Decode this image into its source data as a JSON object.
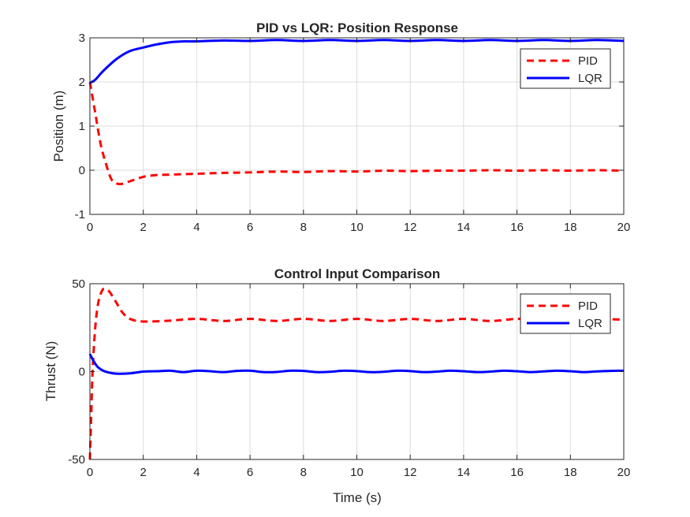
{
  "colors": {
    "pid": "#ff0000",
    "lqr": "#0000ff",
    "grid": "#dcdcdc",
    "axis": "#262626"
  },
  "chart_data": [
    {
      "type": "line",
      "title": "PID vs LQR: Position Response",
      "xlabel": "",
      "ylabel": "Position (m)",
      "xlim": [
        0,
        20
      ],
      "ylim": [
        -1,
        3
      ],
      "xticks": [
        0,
        2,
        4,
        6,
        8,
        10,
        12,
        14,
        16,
        18,
        20
      ],
      "yticks": [
        -1,
        0,
        1,
        2,
        3
      ],
      "grid": true,
      "legend_position": "top-right",
      "series": [
        {
          "name": "PID",
          "style": "dashed",
          "color": "#ff0000",
          "x": [
            0,
            0.2,
            0.4,
            0.6,
            0.8,
            1.0,
            1.2,
            1.5,
            2.0,
            2.5,
            3,
            4,
            5,
            6,
            7,
            8,
            9,
            10,
            11,
            12,
            13,
            14,
            15,
            16,
            17,
            18,
            19,
            20
          ],
          "y": [
            2.0,
            1.3,
            0.6,
            0.15,
            -0.2,
            -0.3,
            -0.31,
            -0.25,
            -0.15,
            -0.11,
            -0.1,
            -0.08,
            -0.06,
            -0.05,
            -0.03,
            -0.04,
            -0.02,
            -0.03,
            -0.01,
            -0.02,
            -0.01,
            -0.01,
            0.0,
            -0.01,
            0.0,
            -0.01,
            0.0,
            -0.01
          ]
        },
        {
          "name": "LQR",
          "style": "solid",
          "color": "#0000ff",
          "x": [
            0,
            0.2,
            0.5,
            1.0,
            1.5,
            2.0,
            2.5,
            3,
            3.5,
            4,
            5,
            6,
            7,
            8,
            9,
            10,
            11,
            12,
            13,
            14,
            15,
            16,
            17,
            18,
            19,
            20
          ],
          "y": [
            1.98,
            2.05,
            2.25,
            2.52,
            2.7,
            2.78,
            2.85,
            2.9,
            2.92,
            2.92,
            2.94,
            2.93,
            2.95,
            2.93,
            2.95,
            2.93,
            2.95,
            2.93,
            2.95,
            2.93,
            2.95,
            2.93,
            2.95,
            2.93,
            2.95,
            2.93
          ]
        }
      ]
    },
    {
      "type": "line",
      "title": "Control Input Comparison",
      "xlabel": "Time (s)",
      "ylabel": "Thrust (N)",
      "xlim": [
        0,
        20
      ],
      "ylim": [
        -50,
        50
      ],
      "xticks": [
        0,
        2,
        4,
        6,
        8,
        10,
        12,
        14,
        16,
        18,
        20
      ],
      "yticks": [
        -50,
        0,
        50
      ],
      "grid": true,
      "legend_position": "top-right",
      "series": [
        {
          "name": "PID",
          "style": "dashed",
          "color": "#ff0000",
          "x": [
            0,
            0.05,
            0.1,
            0.2,
            0.3,
            0.4,
            0.5,
            0.6,
            0.7,
            0.8,
            1.0,
            1.2,
            1.5,
            2,
            3,
            4,
            5,
            6,
            7,
            8,
            9,
            10,
            11,
            12,
            13,
            14,
            15,
            16,
            17,
            18,
            19,
            20
          ],
          "y": [
            -50,
            -25,
            0,
            25,
            38,
            44,
            47,
            47,
            46,
            44,
            39,
            34,
            30,
            28.5,
            29,
            30,
            28.8,
            30,
            28.8,
            30,
            28.8,
            30,
            28.8,
            30,
            28.8,
            30,
            28.8,
            30,
            29.5,
            30,
            30,
            29.5
          ]
        },
        {
          "name": "LQR",
          "style": "solid",
          "color": "#0000ff",
          "x": [
            0,
            0.1,
            0.2,
            0.3,
            0.5,
            0.7,
            1.0,
            1.5,
            2,
            2.5,
            3,
            3.5,
            4,
            4.5,
            5,
            5.5,
            6,
            6.5,
            7,
            7.5,
            8,
            8.5,
            9,
            9.5,
            10,
            10.5,
            11,
            11.5,
            12,
            12.5,
            13,
            13.5,
            14,
            14.5,
            15,
            15.5,
            16,
            16.5,
            17,
            17.5,
            18,
            18.5,
            19,
            19.5,
            20
          ],
          "y": [
            10,
            7,
            4.5,
            2.5,
            0.5,
            -0.5,
            -1.2,
            -1,
            0,
            0.2,
            0.5,
            -0.3,
            0.5,
            0.2,
            -0.3,
            0.4,
            0.5,
            -0.3,
            -0.2,
            0.5,
            0.4,
            -0.3,
            -0.1,
            0.5,
            0.3,
            -0.3,
            -0.1,
            0.5,
            0.3,
            -0.3,
            0.0,
            0.5,
            0.2,
            -0.3,
            0.0,
            0.5,
            0.2,
            -0.3,
            0.1,
            0.5,
            0.2,
            -0.3,
            0.1,
            0.4,
            0.5
          ]
        }
      ]
    }
  ]
}
